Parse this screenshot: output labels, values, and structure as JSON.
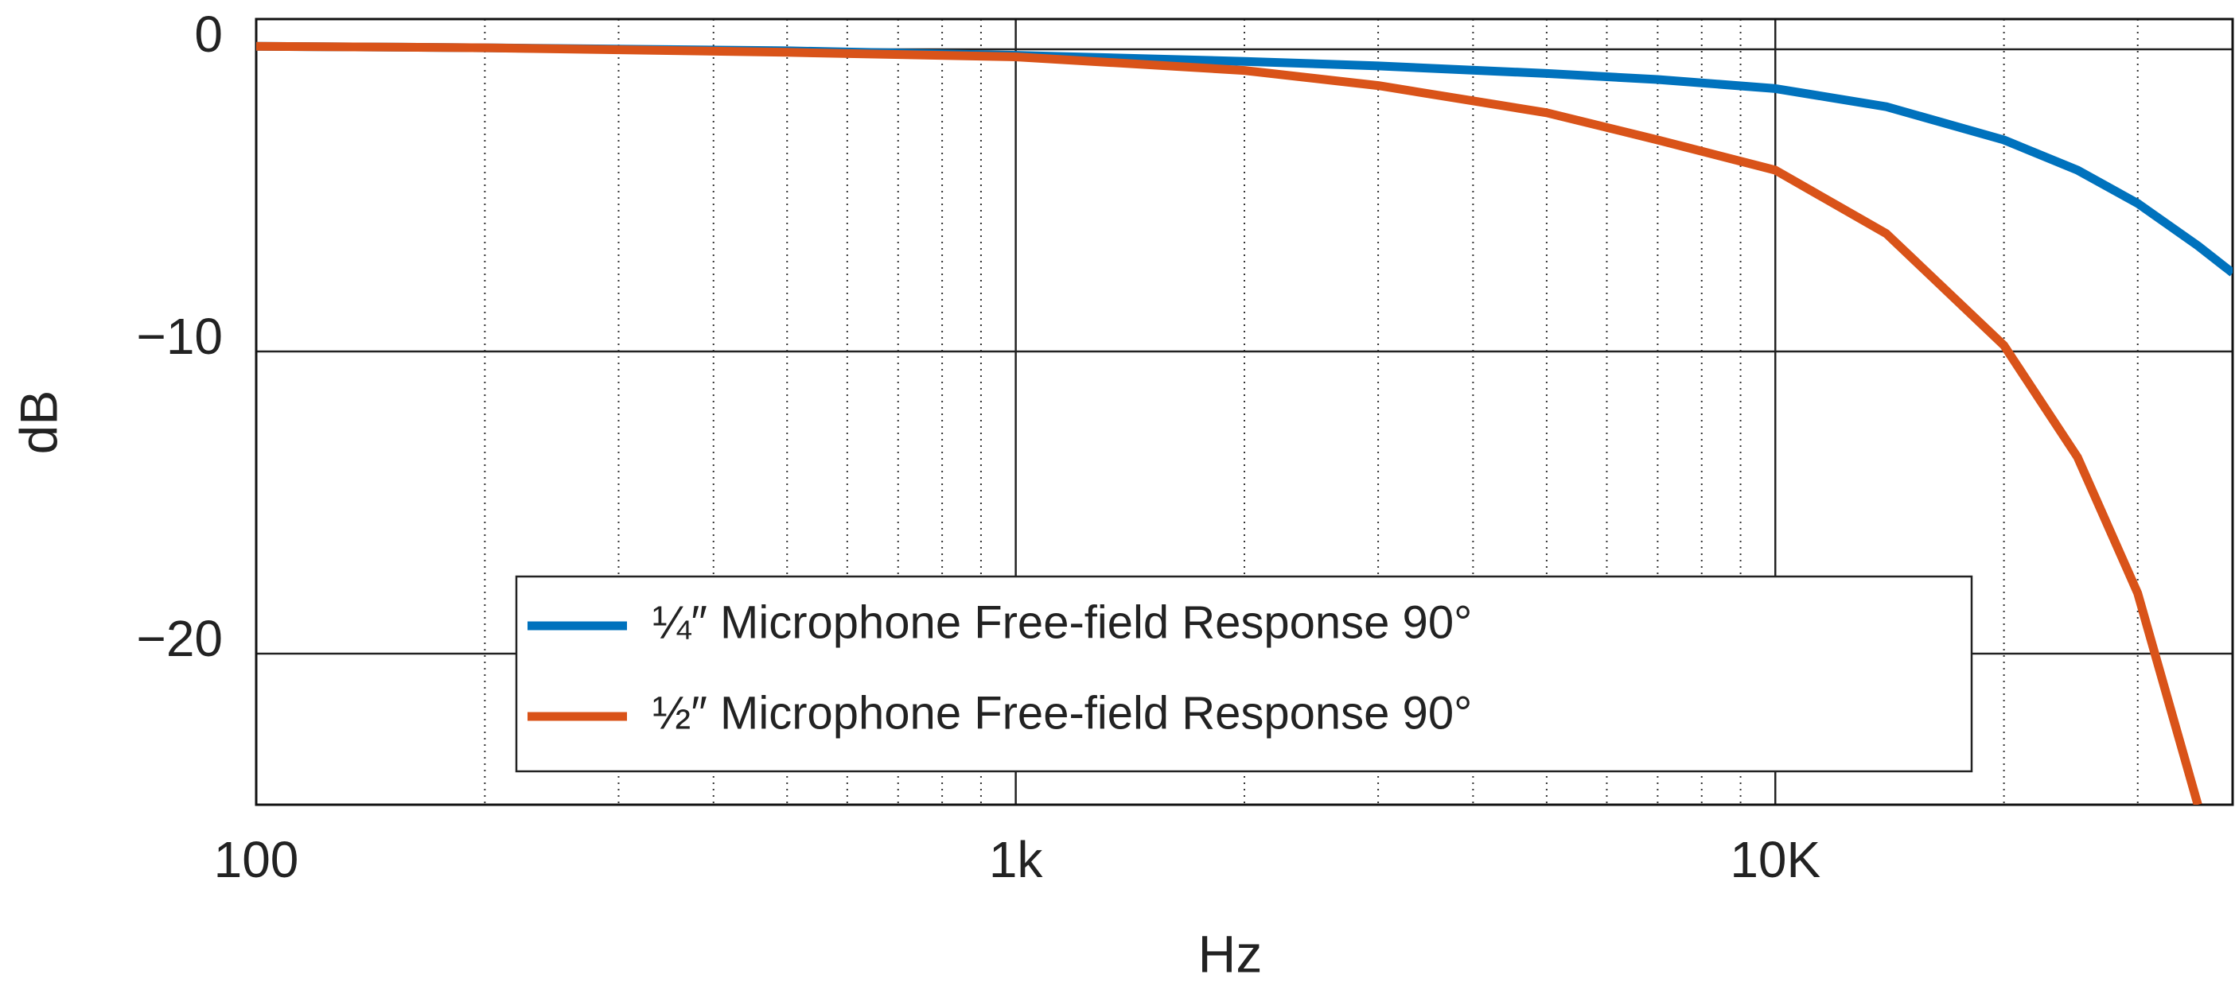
{
  "chart_data": {
    "type": "line",
    "x_label": "Hz",
    "y_label": "dB",
    "xscale": "log",
    "xlim": [
      100,
      40000
    ],
    "ylim": [
      -25,
      1
    ],
    "xticks": [
      {
        "value": 100,
        "label": "100"
      },
      {
        "value": 1000,
        "label": "1k"
      },
      {
        "value": 10000,
        "label": "10K"
      }
    ],
    "xminorticks": [
      200,
      300,
      400,
      500,
      600,
      700,
      800,
      900,
      2000,
      3000,
      4000,
      5000,
      6000,
      7000,
      8000,
      9000,
      20000,
      30000
    ],
    "yticks": [
      0,
      {
        "value": -10,
        "label": "−10"
      },
      {
        "value": -20,
        "label": "−20"
      }
    ],
    "grid": true,
    "minor_grid": true,
    "legend": "lower center",
    "x": [
      100,
      200,
      500,
      1000,
      2000,
      3000,
      5000,
      7000,
      10000,
      14000,
      20000,
      25000,
      30000,
      36000,
      40000
    ],
    "series": [
      {
        "name": "¼″ Microphone Free-field Response 90°",
        "color": "#0072bd",
        "values": [
          0.1,
          0.05,
          -0.05,
          -0.2,
          -0.4,
          -0.55,
          -0.8,
          -1.0,
          -1.3,
          -1.9,
          -3.0,
          -4.0,
          -5.1,
          -6.5,
          -7.4
        ]
      },
      {
        "name": "½″ Microphone Free-field Response 90°",
        "color": "#d95319",
        "values": [
          0.1,
          0.05,
          -0.1,
          -0.25,
          -0.7,
          -1.2,
          -2.1,
          -3.0,
          -4.0,
          -6.1,
          -9.8,
          -13.5,
          -18.0,
          -25,
          null
        ]
      }
    ]
  }
}
